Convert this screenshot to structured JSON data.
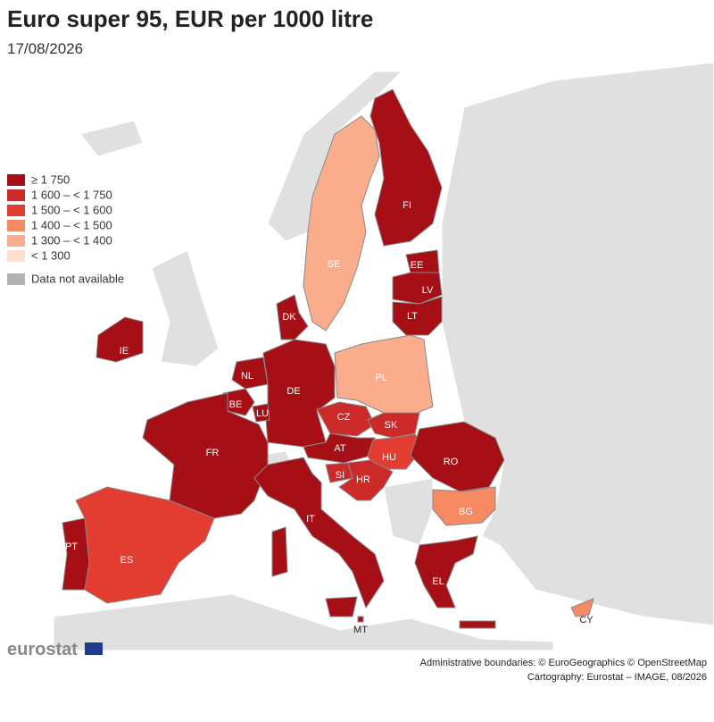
{
  "header": {
    "title": "Euro super 95, EUR per 1000 litre",
    "subtitle": "17/08/2026"
  },
  "legend": [
    {
      "label": "≥ 1 750",
      "color": "#a50f15"
    },
    {
      "label": "1 600 – < 1 750",
      "color": "#cb2a28"
    },
    {
      "label": "1 500 – < 1 600",
      "color": "#e23d30"
    },
    {
      "label": "1 400 – < 1 500",
      "color": "#f58a63"
    },
    {
      "label": "1 300 – < 1 400",
      "color": "#f9ad8c"
    },
    {
      "label": "< 1 300",
      "color": "#fde0d2"
    },
    {
      "label": "Data not available",
      "color": "#b3b3b3"
    }
  ],
  "countries": [
    {
      "label": "FI",
      "color": "#a50f15"
    },
    {
      "label": "SE",
      "color": "#f9ad8c"
    },
    {
      "label": "EE",
      "color": "#a50f15"
    },
    {
      "label": "LV",
      "color": "#a50f15"
    },
    {
      "label": "LT",
      "color": "#a50f15"
    },
    {
      "label": "DK",
      "color": "#a50f15"
    },
    {
      "label": "IE",
      "color": "#a50f15"
    },
    {
      "label": "NL",
      "color": "#a50f15"
    },
    {
      "label": "DE",
      "color": "#a50f15"
    },
    {
      "label": "PL",
      "color": "#f9ad8c"
    },
    {
      "label": "BE",
      "color": "#a50f15"
    },
    {
      "label": "LU",
      "color": "#a50f15"
    },
    {
      "label": "CZ",
      "color": "#cb2a28"
    },
    {
      "label": "SK",
      "color": "#cb2a28"
    },
    {
      "label": "FR",
      "color": "#a50f15"
    },
    {
      "label": "AT",
      "color": "#a50f15"
    },
    {
      "label": "HU",
      "color": "#e23d30"
    },
    {
      "label": "RO",
      "color": "#a50f15"
    },
    {
      "label": "SI",
      "color": "#cb2a28"
    },
    {
      "label": "HR",
      "color": "#cb2a28"
    },
    {
      "label": "BG",
      "color": "#f58a63"
    },
    {
      "label": "IT",
      "color": "#a50f15"
    },
    {
      "label": "ES",
      "color": "#e23d30"
    },
    {
      "label": "PT",
      "color": "#a50f15"
    },
    {
      "label": "EL",
      "color": "#a50f15"
    },
    {
      "label": "MT",
      "color": "#a50f15"
    },
    {
      "label": "CY",
      "color": "#f58a63"
    }
  ],
  "footer": {
    "logo": "eurostat",
    "credit1": "Administrative boundaries: © EuroGeographics © OpenStreetMap",
    "credit2": "Cartography: Eurostat – IMAGE, 08/2026"
  }
}
